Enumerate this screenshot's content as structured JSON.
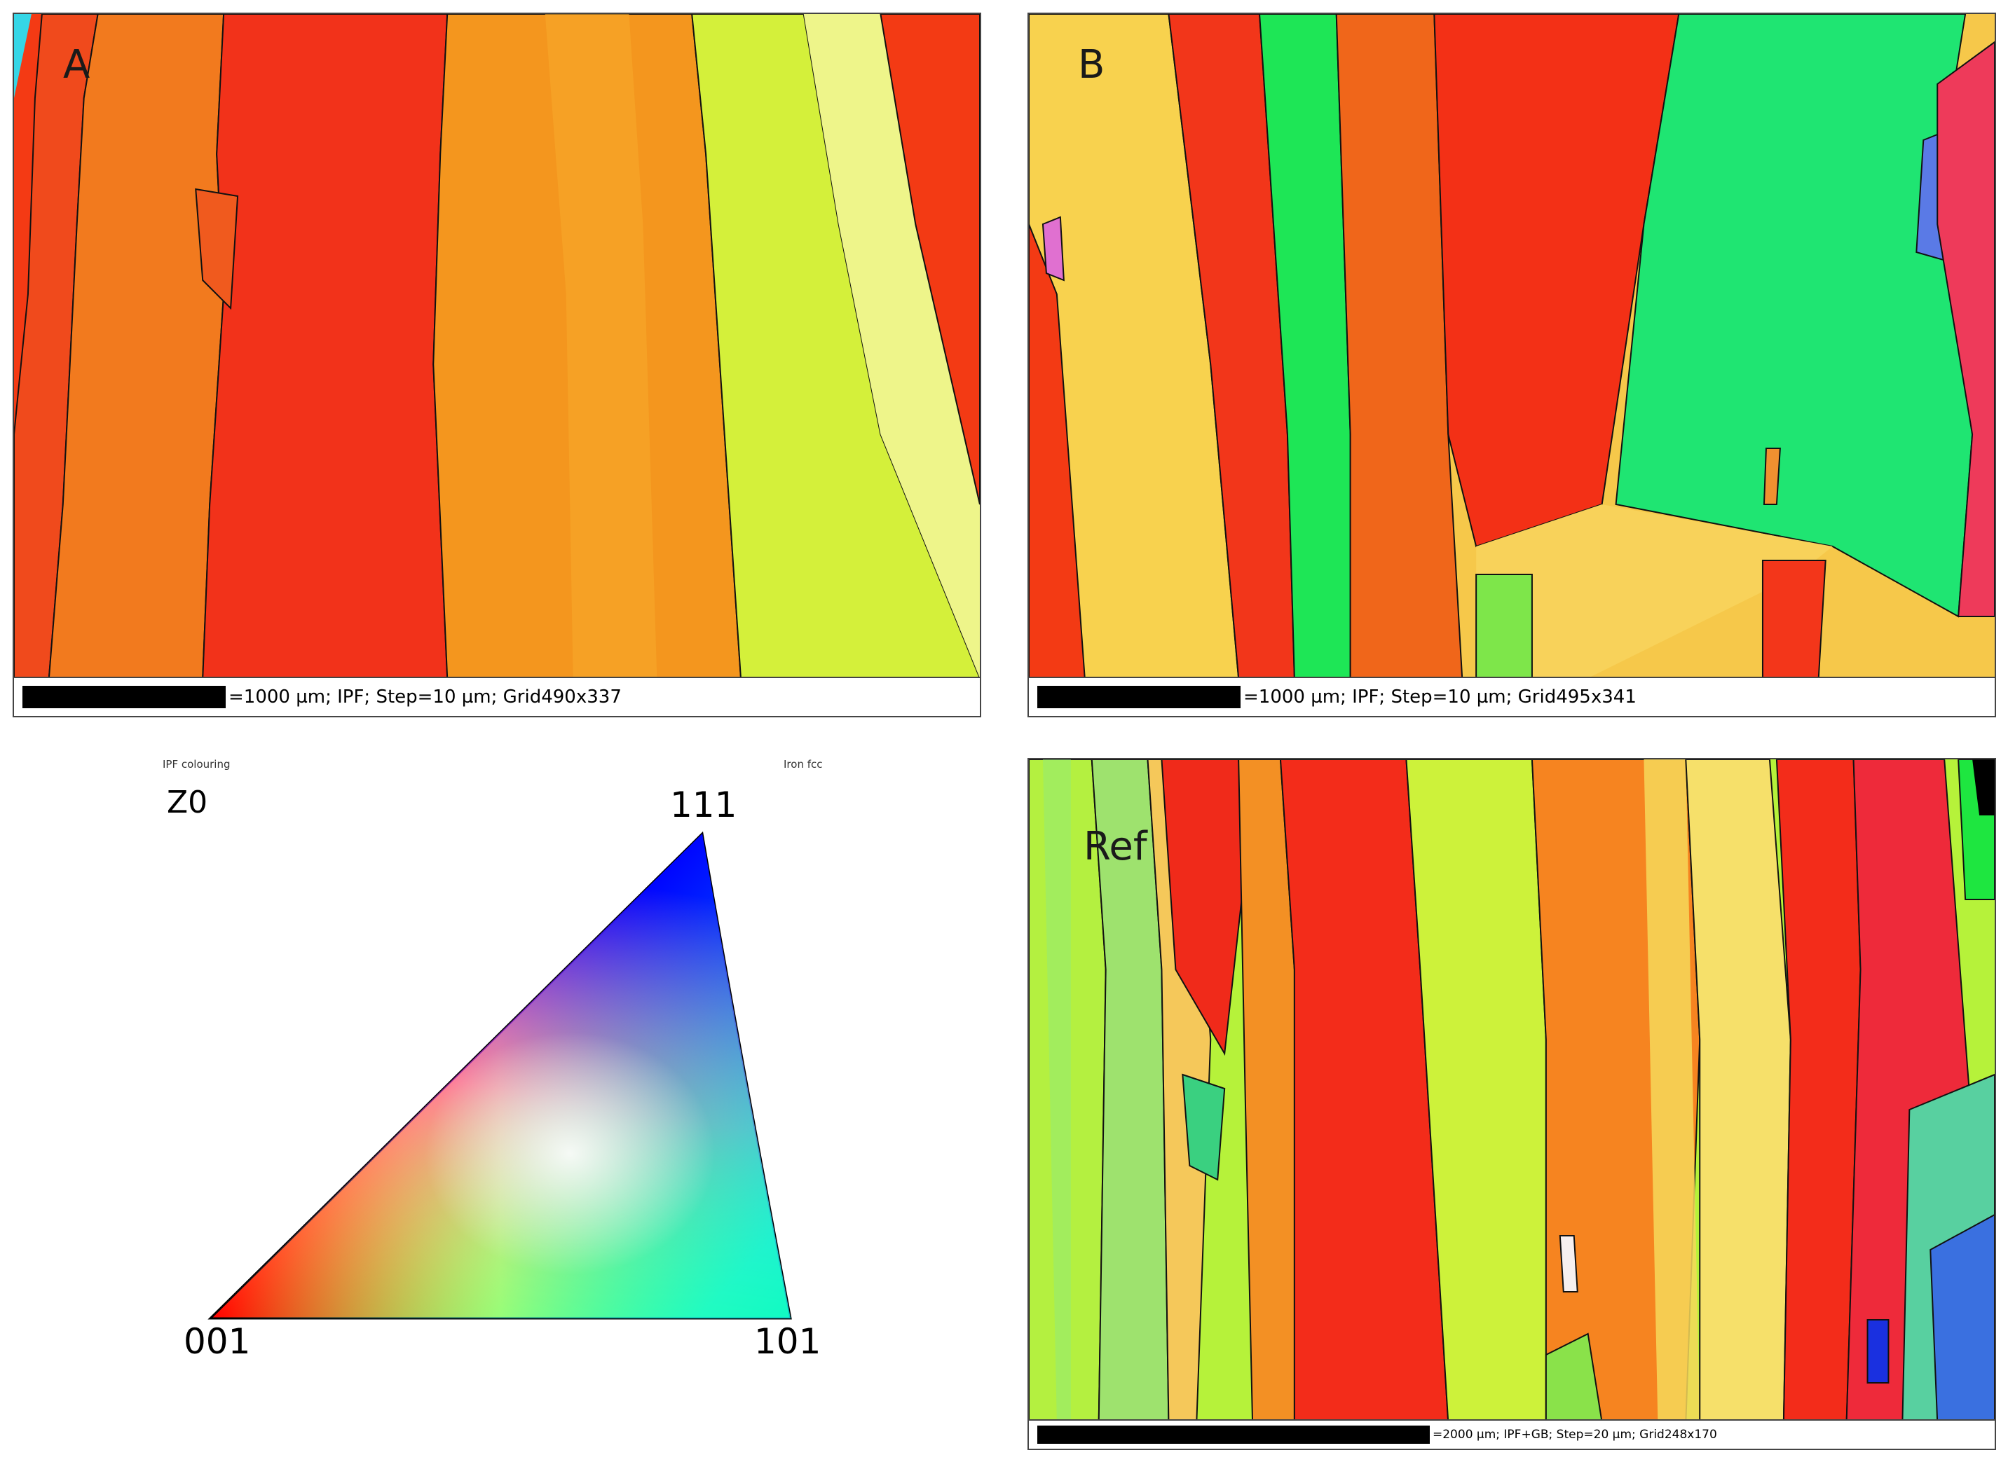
{
  "panels": {
    "a": {
      "label": "A",
      "scalebar_text": "=1000 µm; IPF; Step=10 µm; Grid490x337"
    },
    "b": {
      "label": "B",
      "scalebar_text": "=1000 µm; IPF; Step=10 µm; Grid495x341"
    },
    "ref": {
      "label": "Ref",
      "scalebar_text": "=2000 µm; IPF+GB; Step=20 µm; Grid248x170"
    }
  },
  "legend": {
    "title": "IPF colouring",
    "phase": "Iron fcc",
    "direction": "Z0",
    "corners": {
      "top": "111",
      "bottom_left": "001",
      "bottom_right": "101"
    },
    "corner_colors": {
      "001": "#ff0000",
      "101": "#00ff00",
      "111": "#0000ff"
    }
  },
  "colors": {
    "red": "#f52a12",
    "orange": "#f58a1e",
    "yellow": "#f6e04c",
    "lime": "#c8f53a",
    "green": "#1ee86a",
    "blue": "#3060e0"
  }
}
